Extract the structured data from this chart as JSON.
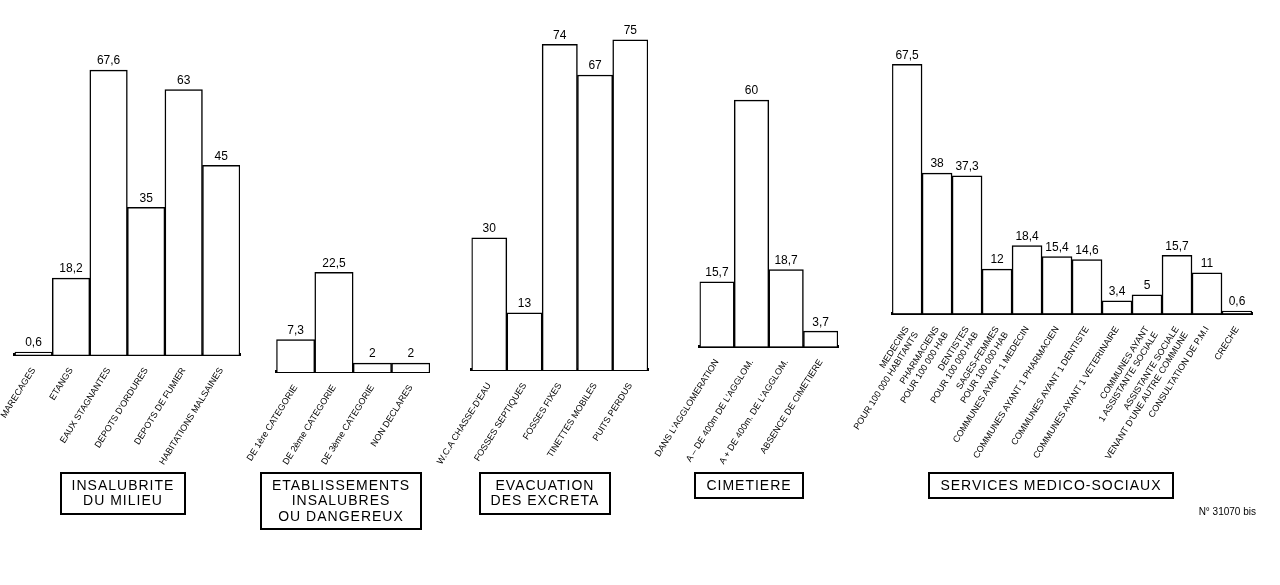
{
  "chart_data": [
    {
      "type": "bar",
      "title": "INSALUBRITE\nDU MILIEU",
      "categories": [
        "MARECAGES",
        "ETANGS",
        "EAUX STAGNANTES",
        "DEPOTS D'ORDURES",
        "DEPOTS DE FUMIER",
        "HABITATIONS MALSAINES"
      ],
      "values": [
        0.6,
        18.2,
        67.6,
        35,
        63,
        45
      ],
      "value_labels": [
        "0,6",
        "18,2",
        "67,6",
        "35",
        "63",
        "45"
      ],
      "color": "#ffffff",
      "tick_labels": "x"
    },
    {
      "type": "bar",
      "title": "ETABLISSEMENTS\nINSALUBRES\nOU DANGEREUX",
      "categories": [
        "DE 1ère CATEGORIE",
        "DE 2ème CATEGORIE",
        "DE 3ème CATEGORIE",
        "NON DECLARES"
      ],
      "values": [
        7.3,
        22.5,
        2,
        2
      ],
      "value_labels": [
        "7,3",
        "22,5",
        "2",
        "2"
      ],
      "color": "#ffffff",
      "tick_labels": "x"
    },
    {
      "type": "bar",
      "title": "EVACUATION\nDES EXCRETA",
      "categories": [
        "W.C.A CHASSE-D'EAU",
        "FOSSES SEPTIQUES",
        "FOSSES FIXES",
        "TINETTES MOBILES",
        "PUITS PERDUS"
      ],
      "values": [
        30,
        13,
        74,
        67,
        75
      ],
      "value_labels": [
        "30",
        "13",
        "74",
        "67",
        "75"
      ],
      "color": "#ffffff",
      "tick_labels": "x"
    },
    {
      "type": "bar",
      "title": "CIMETIERE",
      "categories": [
        "DANS L'AGGLOMERATION",
        "A – DE 400m DE L'AGGLOM.",
        "A + DE 400m. DE L'AGGLOM.",
        "ABSENCE DE CIMETIERE"
      ],
      "values": [
        15.7,
        60,
        18.7,
        3.7
      ],
      "value_labels": [
        "15,7",
        "60",
        "18,7",
        "3,7"
      ],
      "color": "#ffffff",
      "tick_labels": "x"
    },
    {
      "type": "bar",
      "title": "SERVICES MEDICO-SOCIAUX",
      "categories": [
        "MEDECINS\nPOUR 100 000 HABITANTS",
        "PHARMACIENS\nPOUR 100 000 HAB",
        "DENTISTES\nPOUR 100 000 HAB",
        "SAGES-FEMMES\nPOUR 100 000 HAB",
        "COMMUNES AYANT 1 MEDECIN",
        "COMMUNES AYANT 1 PHARMACIEN",
        "COMMUNES AYANT 1 DENTISTE",
        "COMMUNES AYANT 1 VETERINAIRE",
        "COMMUNES AYANT\n1 ASSISTANTE SOCIALE",
        "ASSISTANTE SOCIALE\nVENANT D'UNE AUTRE COMMUNE",
        "CONSULTATION DE P.M.I",
        "CRECHE"
      ],
      "values": [
        67.5,
        38,
        37.3,
        12,
        18.4,
        15.4,
        14.6,
        3.4,
        5,
        15.7,
        11,
        0.6
      ],
      "value_labels": [
        "67,5",
        "38",
        "37,3",
        "12",
        "18,4",
        "15,4",
        "14,6",
        "3,4",
        "5",
        "15,7",
        "11",
        "0,6"
      ],
      "color": "#ffffff",
      "tick_labels": "x",
      "annotations": [
        "N° 31070 bis"
      ]
    }
  ]
}
